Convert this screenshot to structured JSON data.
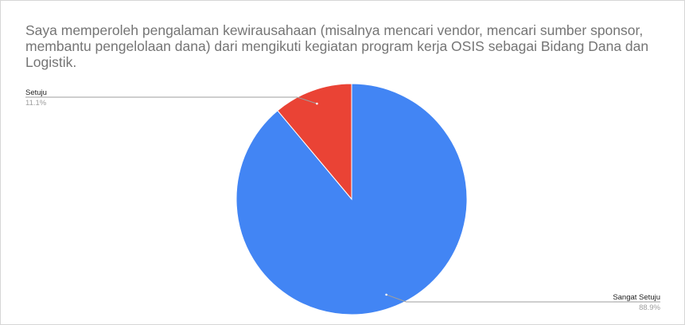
{
  "chart_data": {
    "type": "pie",
    "title": "Saya memperoleh pengalaman kewirausahaan (misalnya mencari vendor, mencari sumber sponsor, membantu pengelolaan dana) dari mengikuti kegiatan program kerja OSIS sebagai Bidang Dana dan Logistik.",
    "slices": [
      {
        "label": "Sangat Setuju",
        "value": 88.9,
        "value_label": "88.9%",
        "color": "#4285f4"
      },
      {
        "label": "Setuju",
        "value": 11.1,
        "value_label": "11.1%",
        "color": "#ea4335"
      }
    ],
    "legend": "none",
    "label_style": "external-lines"
  }
}
